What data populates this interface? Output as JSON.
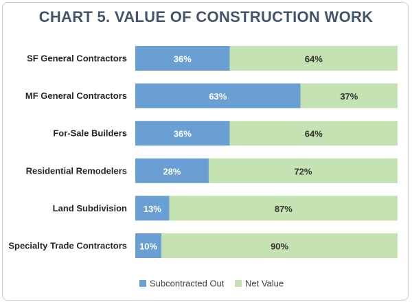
{
  "chart_data": {
    "type": "bar",
    "orientation": "horizontal",
    "stacked": true,
    "title": "CHART 5. VALUE OF CONSTRUCTION WORK",
    "categories": [
      "SF General Contractors",
      "MF General Contractors",
      "For-Sale Builders",
      "Residential Remodelers",
      "Land Subdivision",
      "Specialty Trade Contractors"
    ],
    "series": [
      {
        "name": "Subcontracted Out",
        "values": [
          36,
          63,
          36,
          28,
          13,
          10
        ],
        "labels": [
          "36%",
          "63%",
          "36%",
          "28%",
          "13%",
          "10%"
        ],
        "color": "#6a9fd4",
        "label_color": "#ffffff"
      },
      {
        "name": "Net Value",
        "values": [
          64,
          37,
          64,
          72,
          87,
          90
        ],
        "labels": [
          "64%",
          "37%",
          "64%",
          "72%",
          "87%",
          "90%"
        ],
        "color": "#c5e3b2",
        "label_color": "#333333"
      }
    ],
    "xlim": [
      0,
      100
    ],
    "legend_position": "bottom",
    "grid": false
  }
}
